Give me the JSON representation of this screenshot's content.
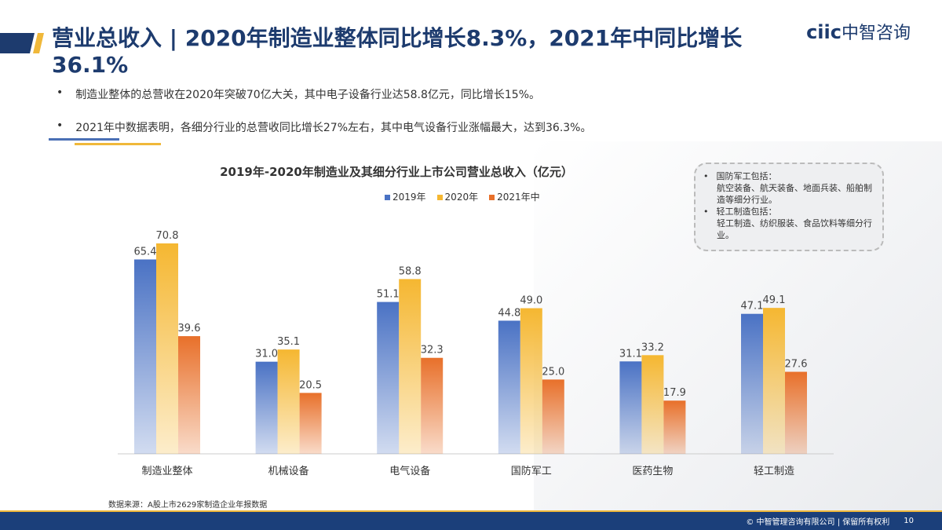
{
  "header": {
    "title": "营业总收入 | 2020年制造业整体同比增长8.3%，2021年中同比增长36.1%",
    "logo_en": "ciic",
    "logo_cn": "中智咨询"
  },
  "bullets": [
    "制造业整体的总营收在2020年突破70亿大关，其中电子设备行业达58.8亿元，同比增长15%。",
    "2021年中数据表明，各细分行业的总营收同比增长27%左右，其中电气设备行业涨幅最大，达到36.3%。"
  ],
  "note": {
    "items": [
      {
        "head": "国防军工包括：",
        "body": "航空装备、航天装备、地面兵装、船舶制造等细分行业。"
      },
      {
        "head": "轻工制造包括：",
        "body": "轻工制造、纺织服装、食品饮料等细分行业。"
      }
    ]
  },
  "footer": {
    "source": "数据来源：A股上市2629家制造企业年报数据",
    "copyright": "© 中智管理咨询有限公司 | 保留所有权利",
    "page": "10"
  },
  "colors": {
    "s2019": "#4a72c4",
    "s2020": "#f5b731",
    "s2021": "#e8702a"
  },
  "chart_data": {
    "type": "bar",
    "title": "2019年-2020年制造业及其细分行业上市公司营业总收入（亿元）",
    "categories": [
      "制造业整体",
      "机械设备",
      "电气设备",
      "国防军工",
      "医药生物",
      "轻工制造"
    ],
    "series": [
      {
        "name": "2019年",
        "values": [
          65.4,
          31.0,
          51.1,
          44.8,
          31.1,
          47.1
        ]
      },
      {
        "name": "2020年",
        "values": [
          70.8,
          35.1,
          58.8,
          49.0,
          33.2,
          49.1
        ]
      },
      {
        "name": "2021年中",
        "values": [
          39.6,
          20.5,
          32.3,
          25.0,
          17.9,
          27.6
        ]
      }
    ],
    "ylim": [
      0,
      75
    ],
    "grid": false,
    "legend": "top"
  }
}
